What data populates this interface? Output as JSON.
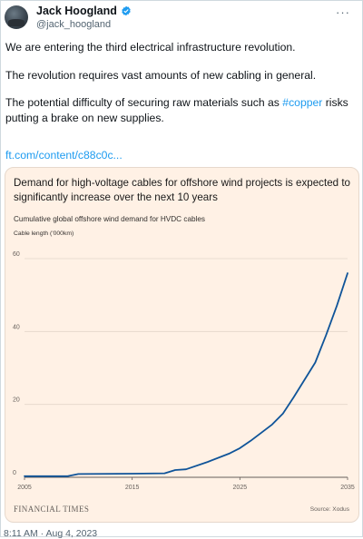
{
  "author": {
    "name": "Jack Hoogland",
    "handle": "@jack_hoogland"
  },
  "icons": {
    "verified": "verified-badge-icon",
    "more": "more-options-icon"
  },
  "colors": {
    "link": "#1d9bf0",
    "card_bg": "#fff1e5",
    "line": "#0f5499"
  },
  "tweet": {
    "line1": "We are entering the third electrical infrastructure revolution.",
    "line2": "The revolution requires vast amounts of new cabling in general.",
    "line3_before": "The potential difficulty of securing raw materials such as ",
    "hashtag": "#copper",
    "line3_after": " risks putting a brake on  new supplies.",
    "link": "ft.com/content/c88c0c..."
  },
  "card": {
    "title": "Demand for high-voltage cables for offshore wind projects is expected to significantly increase over the next 10 years",
    "subtitle": "Cumulative global offshore wind demand for HVDC cables",
    "unit": "Cable length ('000km)",
    "logo": "FINANCIAL TIMES",
    "source": "Source: Xodus"
  },
  "chart_data": {
    "type": "line",
    "title": "Demand for high-voltage cables for offshore wind projects is expected to significantly increase over the next 10 years",
    "subtitle": "Cumulative global offshore wind demand for HVDC cables",
    "ylabel": "Cable length ('000km)",
    "xlim": [
      2005,
      2035
    ],
    "ylim": [
      0,
      60
    ],
    "xticks": [
      2005,
      2015,
      2025,
      2035
    ],
    "yticks": [
      0,
      20,
      40,
      60
    ],
    "grid": "horizontal",
    "series": [
      {
        "values": [
          [
            2005,
            0.3
          ],
          [
            2009,
            0.3
          ],
          [
            2010,
            0.9
          ],
          [
            2015,
            1.0
          ],
          [
            2018,
            1.1
          ],
          [
            2019,
            2.0
          ],
          [
            2020,
            2.2
          ],
          [
            2022,
            4.2
          ],
          [
            2024,
            6.5
          ],
          [
            2025,
            8.0
          ],
          [
            2026,
            10.0
          ],
          [
            2028,
            14.5
          ],
          [
            2029,
            17.5
          ],
          [
            2030,
            22.0
          ],
          [
            2032,
            31.5
          ],
          [
            2033,
            39.0
          ],
          [
            2034,
            47.0
          ],
          [
            2035,
            56.0
          ]
        ]
      }
    ]
  },
  "meta": {
    "timestamp": "8:11 AM · Aug 4, 2023"
  }
}
